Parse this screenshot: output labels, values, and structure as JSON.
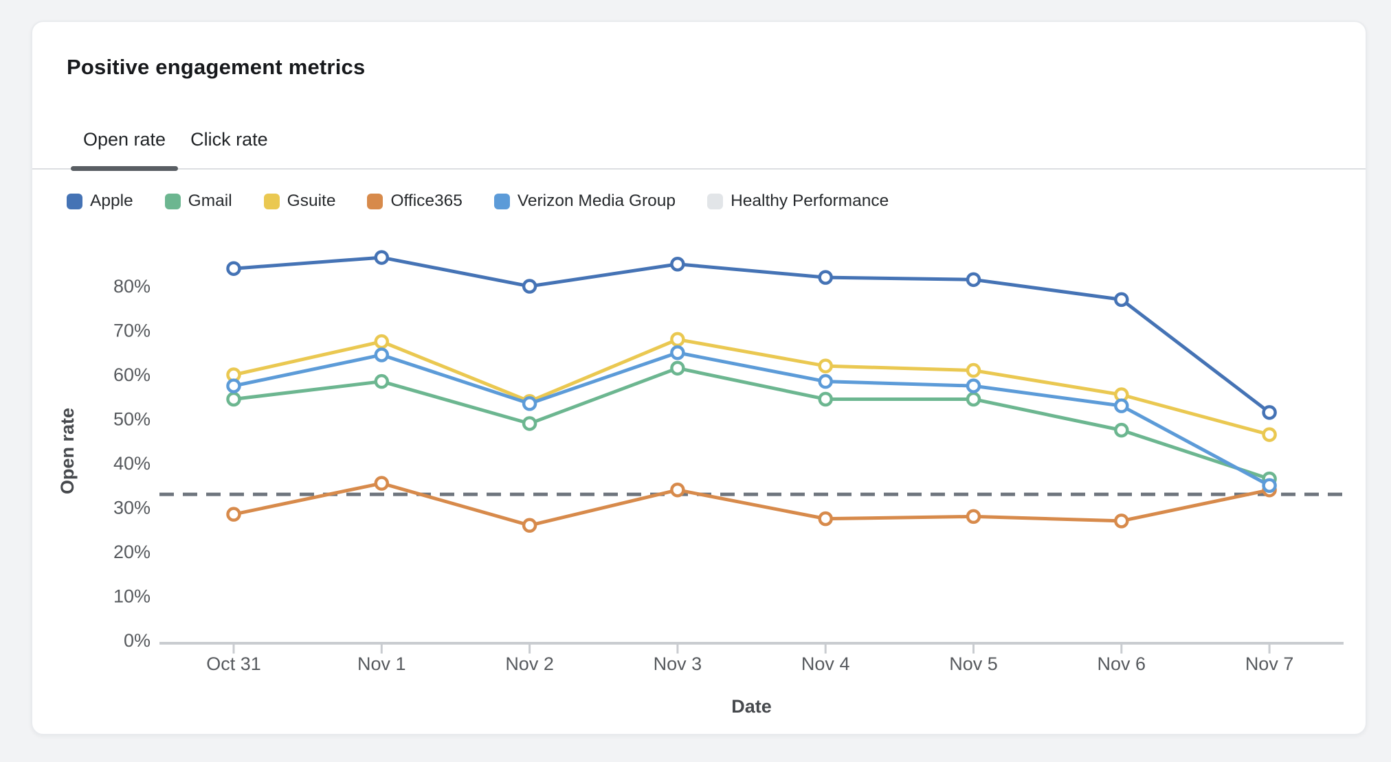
{
  "card": {
    "title": "Positive engagement metrics"
  },
  "tabs": [
    {
      "label": "Open rate",
      "active": true
    },
    {
      "label": "Click rate",
      "active": false
    }
  ],
  "chart_data": {
    "type": "line",
    "title": "Positive engagement metrics",
    "xlabel": "Date",
    "ylabel": "Open rate",
    "categories": [
      "Oct 31",
      "Nov 1",
      "Nov 2",
      "Nov 3",
      "Nov 4",
      "Nov 5",
      "Nov 6",
      "Nov 7"
    ],
    "y_axis": {
      "min": 0,
      "max": 90,
      "tick_step": 10,
      "tick_labels": [
        "0%",
        "10%",
        "20%",
        "30%",
        "40%",
        "50%",
        "60%",
        "70%",
        "80%"
      ]
    },
    "grid": false,
    "legend_position": "top",
    "marker": "open-circle",
    "series": [
      {
        "name": "Apple",
        "color": "#4573B5",
        "values": [
          84,
          86.5,
          80,
          85,
          82,
          81.5,
          77,
          51.5
        ]
      },
      {
        "name": "Gmail",
        "color": "#6CB690",
        "values": [
          54.5,
          58.5,
          49,
          61.5,
          54.5,
          54.5,
          47.5,
          36.5
        ]
      },
      {
        "name": "Gsuite",
        "color": "#EAC851",
        "values": [
          60,
          67.5,
          54,
          68,
          62,
          61,
          55.5,
          46.5
        ]
      },
      {
        "name": "Office365",
        "color": "#D78A4B",
        "values": [
          28.5,
          35.5,
          26,
          34,
          27.5,
          28,
          27,
          34
        ]
      },
      {
        "name": "Verizon Media Group",
        "color": "#5C9BD8",
        "values": [
          57.5,
          64.5,
          53.5,
          65,
          58.5,
          57.5,
          53,
          35
        ]
      }
    ],
    "reference_line": {
      "name": "Healthy Performance",
      "value": 33,
      "line_color": "#6E757D",
      "legend_color": "#E2E5E8",
      "style": "dashed"
    },
    "axis_colors": {
      "axis_line": "#c9ccd0",
      "tick_text": "#56595d"
    }
  }
}
